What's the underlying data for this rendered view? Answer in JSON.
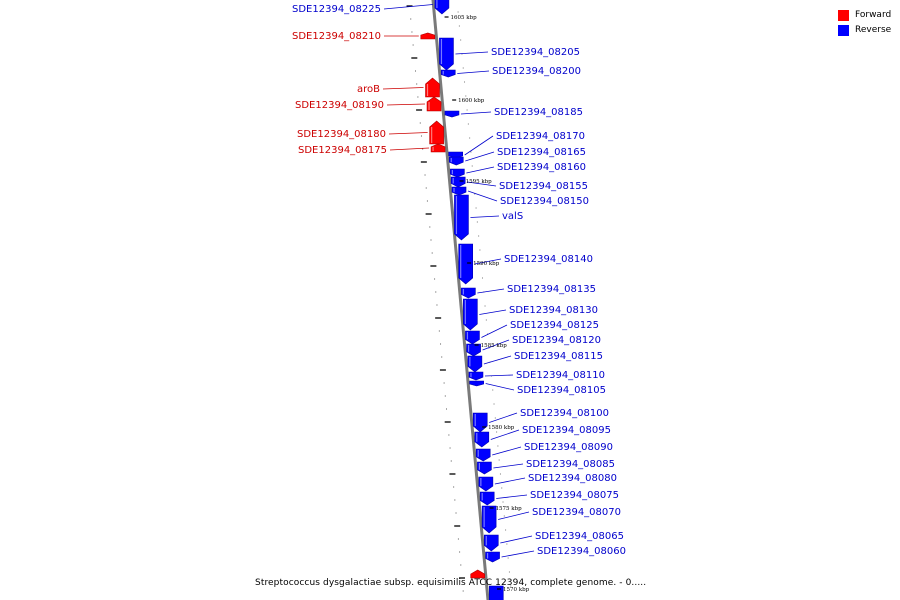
{
  "legend": {
    "items": [
      {
        "label": "Forward",
        "color": "#ff0000"
      },
      {
        "label": "Reverse",
        "color": "#0000ff"
      }
    ]
  },
  "caption": "Streptococcus dysgalactiae subsp. equisimilis ATCC 12394, complete genome. - 0.....",
  "axis": {
    "ticks": [
      {
        "label": "1605 kbp"
      },
      {
        "label": "1600 kbp"
      },
      {
        "label": "1595 kbp"
      },
      {
        "label": "1590 kbp"
      },
      {
        "label": "1585 kbp"
      },
      {
        "label": "1580 kbp"
      },
      {
        "label": "1575 kbp"
      },
      {
        "label": "1570 kbp"
      }
    ]
  },
  "genes": [
    {
      "name": "SDE12394_08225",
      "strand": "reverse"
    },
    {
      "name": "SDE12394_08210",
      "strand": "forward"
    },
    {
      "name": "SDE12394_08205",
      "strand": "reverse"
    },
    {
      "name": "SDE12394_08200",
      "strand": "reverse"
    },
    {
      "name": "aroB",
      "strand": "forward"
    },
    {
      "name": "SDE12394_08190",
      "strand": "forward"
    },
    {
      "name": "SDE12394_08185",
      "strand": "reverse"
    },
    {
      "name": "SDE12394_08180",
      "strand": "forward"
    },
    {
      "name": "SDE12394_08175",
      "strand": "forward"
    },
    {
      "name": "SDE12394_08170",
      "strand": "reverse"
    },
    {
      "name": "SDE12394_08165",
      "strand": "reverse"
    },
    {
      "name": "SDE12394_08160",
      "strand": "reverse"
    },
    {
      "name": "SDE12394_08155",
      "strand": "reverse"
    },
    {
      "name": "SDE12394_08150",
      "strand": "reverse"
    },
    {
      "name": "valS",
      "strand": "reverse"
    },
    {
      "name": "SDE12394_08140",
      "strand": "reverse"
    },
    {
      "name": "SDE12394_08135",
      "strand": "reverse"
    },
    {
      "name": "SDE12394_08130",
      "strand": "reverse"
    },
    {
      "name": "SDE12394_08125",
      "strand": "reverse"
    },
    {
      "name": "SDE12394_08120",
      "strand": "reverse"
    },
    {
      "name": "SDE12394_08115",
      "strand": "reverse"
    },
    {
      "name": "SDE12394_08110",
      "strand": "reverse"
    },
    {
      "name": "SDE12394_08105",
      "strand": "reverse"
    },
    {
      "name": "SDE12394_08100",
      "strand": "reverse"
    },
    {
      "name": "SDE12394_08095",
      "strand": "reverse"
    },
    {
      "name": "SDE12394_08090",
      "strand": "reverse"
    },
    {
      "name": "SDE12394_08085",
      "strand": "reverse"
    },
    {
      "name": "SDE12394_08080",
      "strand": "reverse"
    },
    {
      "name": "SDE12394_08075",
      "strand": "reverse"
    },
    {
      "name": "SDE12394_08070",
      "strand": "reverse"
    },
    {
      "name": "SDE12394_08065",
      "strand": "reverse"
    },
    {
      "name": "SDE12394_08060",
      "strand": "reverse"
    }
  ]
}
